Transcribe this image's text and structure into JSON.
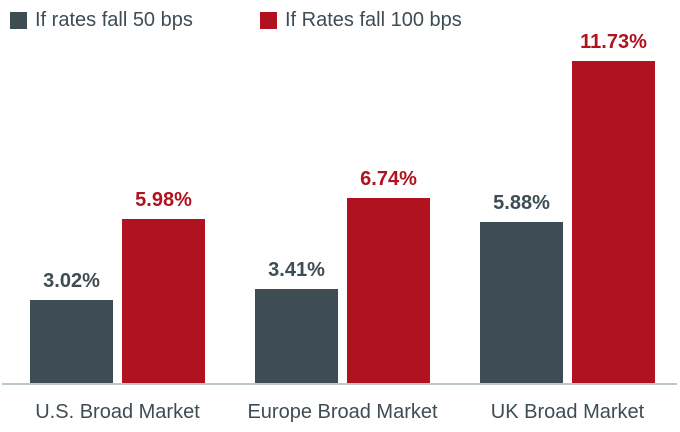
{
  "chart_data": {
    "type": "bar",
    "title": "",
    "xlabel": "",
    "ylabel": "",
    "categories": [
      "U.S. Broad Market",
      "Europe Broad Market",
      "UK Broad Market"
    ],
    "series": [
      {
        "name": "If rates fall 50 bps",
        "color": "#3E4C54",
        "values": [
          3.02,
          3.41,
          5.88
        ],
        "labels": [
          "3.02%",
          "3.41%",
          "5.88%"
        ]
      },
      {
        "name": "If Rates fall 100 bps",
        "color": "#B0121F",
        "values": [
          5.98,
          6.74,
          11.73
        ],
        "labels": [
          "5.98%",
          "6.74%",
          "11.73%"
        ]
      }
    ],
    "ylim": [
      0,
      12
    ],
    "grid": false,
    "legend_position": "top-left",
    "value_labels_shown": true,
    "text_color": "#3E4C54",
    "axis_line_color": "#BDC8CC"
  }
}
